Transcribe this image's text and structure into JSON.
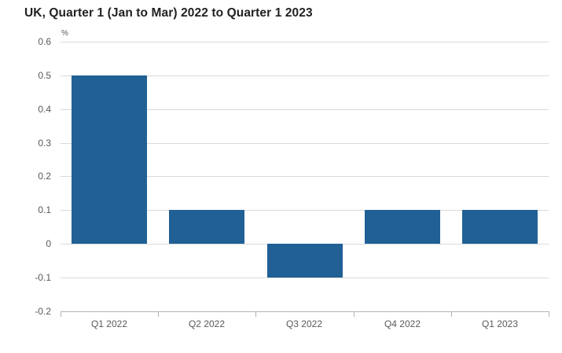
{
  "chart_data": {
    "type": "bar",
    "title": "UK, Quarter 1 (Jan to Mar) 2022 to Quarter 1 2023",
    "unit_label": "%",
    "categories": [
      "Q1 2022",
      "Q2 2022",
      "Q3 2022",
      "Q4 2022",
      "Q1 2023"
    ],
    "values": [
      0.5,
      0.1,
      -0.1,
      0.1,
      0.1
    ],
    "ylim": [
      -0.2,
      0.6
    ],
    "yticks": [
      0.6,
      0.5,
      0.4,
      0.3,
      0.2,
      0.1,
      0,
      -0.1,
      -0.2
    ],
    "ytick_labels": [
      "0.6",
      "0.5",
      "0.4",
      "0.3",
      "0.2",
      "0.1",
      "0",
      "-0.1",
      "-0.2"
    ],
    "xlabel": "",
    "ylabel": "%",
    "grid": true,
    "legend": "none",
    "colors": {
      "bar": "#206095",
      "gridline": "#d9d9d9",
      "axis_line": "#b3b3b3",
      "tick_label": "#595959",
      "title": "#222222"
    }
  }
}
